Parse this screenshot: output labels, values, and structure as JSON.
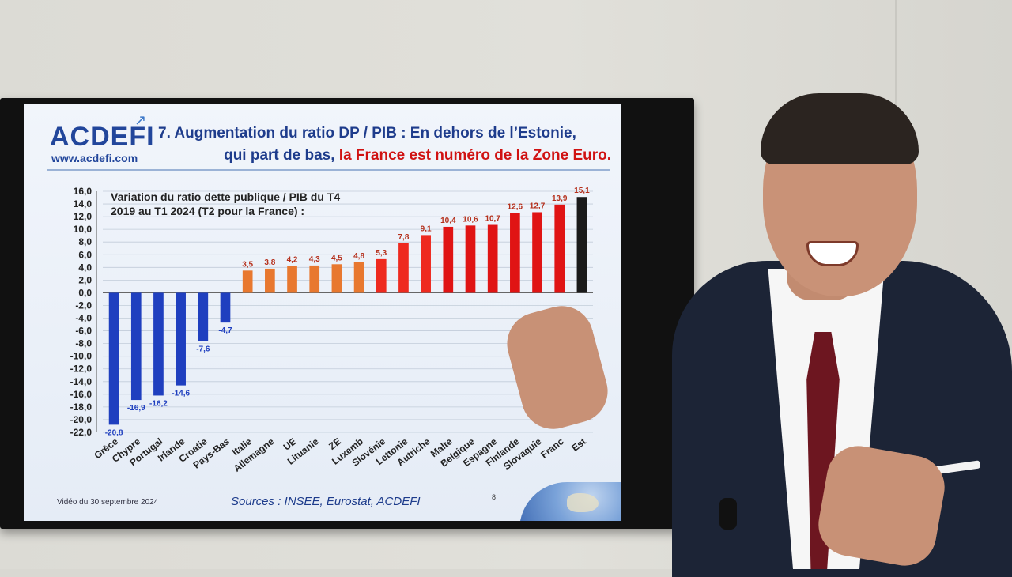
{
  "slide": {
    "logo": "ACDEFI",
    "logo_url": "www.acdefi.com",
    "title_line1": "7. Augmentation du ratio DP / PIB : En dehors de l’Estonie,",
    "title_line2_plain": "qui part de bas,",
    "title_line2_red": "la France est numéro de la Zone Euro.",
    "footer_date": "Vidéo du 30 septembre 2024",
    "footer_sources": "Sources : INSEE, Eurostat, ACDEFI",
    "page_number": "8"
  },
  "chart_data": {
    "type": "bar",
    "title": "Variation du ratio dette publique / PIB du T4 2019 au T1 2024 (T2 pour la France) :",
    "title_lines": [
      "Variation du ratio dette publique / PIB du T4",
      "2019 au T1 2024 (T2 pour la France) :"
    ],
    "categories": [
      "Grèce",
      "Chypre",
      "Portugal",
      "Irlande",
      "Croatie",
      "Pays-Bas",
      "Italie",
      "Allemagne",
      "UE",
      "Lituanie",
      "ZE",
      "Luxemb",
      "Slovénie",
      "Lettonie",
      "Autriche",
      "Malte",
      "Belgique",
      "Espagne",
      "Finlande",
      "Slovaquie",
      "France",
      "Estonie"
    ],
    "category_labels": [
      "Grèce",
      "Chypre",
      "Portugal",
      "Irlande",
      "Croatie",
      "Pays-Bas",
      "Italie",
      "Allemagne",
      "UE",
      "Lituanie",
      "ZE",
      "Luxemb",
      "Slovénie",
      "Lettonie",
      "Autriche",
      "Malte",
      "Belgique",
      "Espagne",
      "Finlande",
      "Slovaquie",
      "Franc",
      "Est"
    ],
    "values": [
      -20.8,
      -16.9,
      -16.2,
      -14.6,
      -7.6,
      -4.7,
      3.5,
      3.8,
      4.2,
      4.3,
      4.5,
      4.8,
      5.3,
      7.8,
      9.1,
      10.4,
      10.6,
      10.7,
      12.6,
      12.7,
      13.9,
      15.1
    ],
    "value_labels": [
      "-20,8",
      "-16,9",
      "-16,2",
      "-14,6",
      "-7,6",
      "-4,7",
      "3,5",
      "3,8",
      "4,2",
      "4,3",
      "4,5",
      "4,8",
      "5,3",
      "7,8",
      "9,1",
      "10,4",
      "10,6",
      "10,7",
      "12,6",
      "12,7",
      "13,9",
      "15,1"
    ],
    "colors": [
      "#1f3fbf",
      "#1f3fbf",
      "#1f3fbf",
      "#1f3fbf",
      "#1f3fbf",
      "#1f3fbf",
      "#e8782f",
      "#e8782f",
      "#e8782f",
      "#e8782f",
      "#e8782f",
      "#e8782f",
      "#ee2a1f",
      "#ee2a1f",
      "#ee2a1f",
      "#e01414",
      "#e01414",
      "#e01414",
      "#e01414",
      "#e01414",
      "#e01414",
      "#1a1a1a"
    ],
    "negative_label_color": "#1f3fbf",
    "positive_label_color": "#b5301c",
    "ylim": [
      -22,
      16
    ],
    "yticks": [
      "16,0",
      "14,0",
      "12,0",
      "10,0",
      "8,0",
      "6,0",
      "4,0",
      "2,0",
      "0,0",
      "-2,0",
      "-4,0",
      "-6,0",
      "-8,0",
      "-10,0",
      "-12,0",
      "-14,0",
      "-16,0",
      "-18,0",
      "-20,0",
      "-22,0"
    ],
    "ytick_values": [
      16,
      14,
      12,
      10,
      8,
      6,
      4,
      2,
      0,
      -2,
      -4,
      -6,
      -8,
      -10,
      -12,
      -14,
      -16,
      -18,
      -20,
      -22
    ],
    "grid": true
  }
}
